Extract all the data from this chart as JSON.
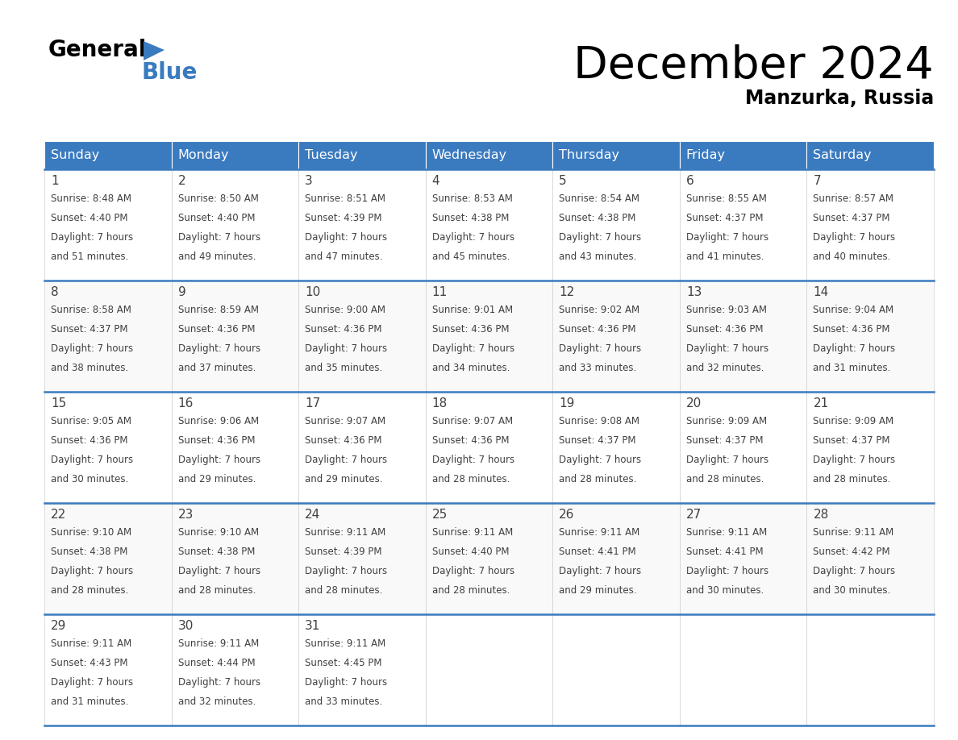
{
  "title": "December 2024",
  "subtitle": "Manzurka, Russia",
  "header_color": "#3a7abf",
  "header_text_color": "#ffffff",
  "border_color": "#3a7abf",
  "text_color": "#404040",
  "days_of_week": [
    "Sunday",
    "Monday",
    "Tuesday",
    "Wednesday",
    "Thursday",
    "Friday",
    "Saturday"
  ],
  "weeks": [
    [
      {
        "day": "1",
        "sunrise": "8:48 AM",
        "sunset": "4:40 PM",
        "daylight": "7 hours",
        "daylight2": "and 51 minutes."
      },
      {
        "day": "2",
        "sunrise": "8:50 AM",
        "sunset": "4:40 PM",
        "daylight": "7 hours",
        "daylight2": "and 49 minutes."
      },
      {
        "day": "3",
        "sunrise": "8:51 AM",
        "sunset": "4:39 PM",
        "daylight": "7 hours",
        "daylight2": "and 47 minutes."
      },
      {
        "day": "4",
        "sunrise": "8:53 AM",
        "sunset": "4:38 PM",
        "daylight": "7 hours",
        "daylight2": "and 45 minutes."
      },
      {
        "day": "5",
        "sunrise": "8:54 AM",
        "sunset": "4:38 PM",
        "daylight": "7 hours",
        "daylight2": "and 43 minutes."
      },
      {
        "day": "6",
        "sunrise": "8:55 AM",
        "sunset": "4:37 PM",
        "daylight": "7 hours",
        "daylight2": "and 41 minutes."
      },
      {
        "day": "7",
        "sunrise": "8:57 AM",
        "sunset": "4:37 PM",
        "daylight": "7 hours",
        "daylight2": "and 40 minutes."
      }
    ],
    [
      {
        "day": "8",
        "sunrise": "8:58 AM",
        "sunset": "4:37 PM",
        "daylight": "7 hours",
        "daylight2": "and 38 minutes."
      },
      {
        "day": "9",
        "sunrise": "8:59 AM",
        "sunset": "4:36 PM",
        "daylight": "7 hours",
        "daylight2": "and 37 minutes."
      },
      {
        "day": "10",
        "sunrise": "9:00 AM",
        "sunset": "4:36 PM",
        "daylight": "7 hours",
        "daylight2": "and 35 minutes."
      },
      {
        "day": "11",
        "sunrise": "9:01 AM",
        "sunset": "4:36 PM",
        "daylight": "7 hours",
        "daylight2": "and 34 minutes."
      },
      {
        "day": "12",
        "sunrise": "9:02 AM",
        "sunset": "4:36 PM",
        "daylight": "7 hours",
        "daylight2": "and 33 minutes."
      },
      {
        "day": "13",
        "sunrise": "9:03 AM",
        "sunset": "4:36 PM",
        "daylight": "7 hours",
        "daylight2": "and 32 minutes."
      },
      {
        "day": "14",
        "sunrise": "9:04 AM",
        "sunset": "4:36 PM",
        "daylight": "7 hours",
        "daylight2": "and 31 minutes."
      }
    ],
    [
      {
        "day": "15",
        "sunrise": "9:05 AM",
        "sunset": "4:36 PM",
        "daylight": "7 hours",
        "daylight2": "and 30 minutes."
      },
      {
        "day": "16",
        "sunrise": "9:06 AM",
        "sunset": "4:36 PM",
        "daylight": "7 hours",
        "daylight2": "and 29 minutes."
      },
      {
        "day": "17",
        "sunrise": "9:07 AM",
        "sunset": "4:36 PM",
        "daylight": "7 hours",
        "daylight2": "and 29 minutes."
      },
      {
        "day": "18",
        "sunrise": "9:07 AM",
        "sunset": "4:36 PM",
        "daylight": "7 hours",
        "daylight2": "and 28 minutes."
      },
      {
        "day": "19",
        "sunrise": "9:08 AM",
        "sunset": "4:37 PM",
        "daylight": "7 hours",
        "daylight2": "and 28 minutes."
      },
      {
        "day": "20",
        "sunrise": "9:09 AM",
        "sunset": "4:37 PM",
        "daylight": "7 hours",
        "daylight2": "and 28 minutes."
      },
      {
        "day": "21",
        "sunrise": "9:09 AM",
        "sunset": "4:37 PM",
        "daylight": "7 hours",
        "daylight2": "and 28 minutes."
      }
    ],
    [
      {
        "day": "22",
        "sunrise": "9:10 AM",
        "sunset": "4:38 PM",
        "daylight": "7 hours",
        "daylight2": "and 28 minutes."
      },
      {
        "day": "23",
        "sunrise": "9:10 AM",
        "sunset": "4:38 PM",
        "daylight": "7 hours",
        "daylight2": "and 28 minutes."
      },
      {
        "day": "24",
        "sunrise": "9:11 AM",
        "sunset": "4:39 PM",
        "daylight": "7 hours",
        "daylight2": "and 28 minutes."
      },
      {
        "day": "25",
        "sunrise": "9:11 AM",
        "sunset": "4:40 PM",
        "daylight": "7 hours",
        "daylight2": "and 28 minutes."
      },
      {
        "day": "26",
        "sunrise": "9:11 AM",
        "sunset": "4:41 PM",
        "daylight": "7 hours",
        "daylight2": "and 29 minutes."
      },
      {
        "day": "27",
        "sunrise": "9:11 AM",
        "sunset": "4:41 PM",
        "daylight": "7 hours",
        "daylight2": "and 30 minutes."
      },
      {
        "day": "28",
        "sunrise": "9:11 AM",
        "sunset": "4:42 PM",
        "daylight": "7 hours",
        "daylight2": "and 30 minutes."
      }
    ],
    [
      {
        "day": "29",
        "sunrise": "9:11 AM",
        "sunset": "4:43 PM",
        "daylight": "7 hours",
        "daylight2": "and 31 minutes."
      },
      {
        "day": "30",
        "sunrise": "9:11 AM",
        "sunset": "4:44 PM",
        "daylight": "7 hours",
        "daylight2": "and 32 minutes."
      },
      {
        "day": "31",
        "sunrise": "9:11 AM",
        "sunset": "4:45 PM",
        "daylight": "7 hours",
        "daylight2": "and 33 minutes."
      },
      null,
      null,
      null,
      null
    ]
  ]
}
